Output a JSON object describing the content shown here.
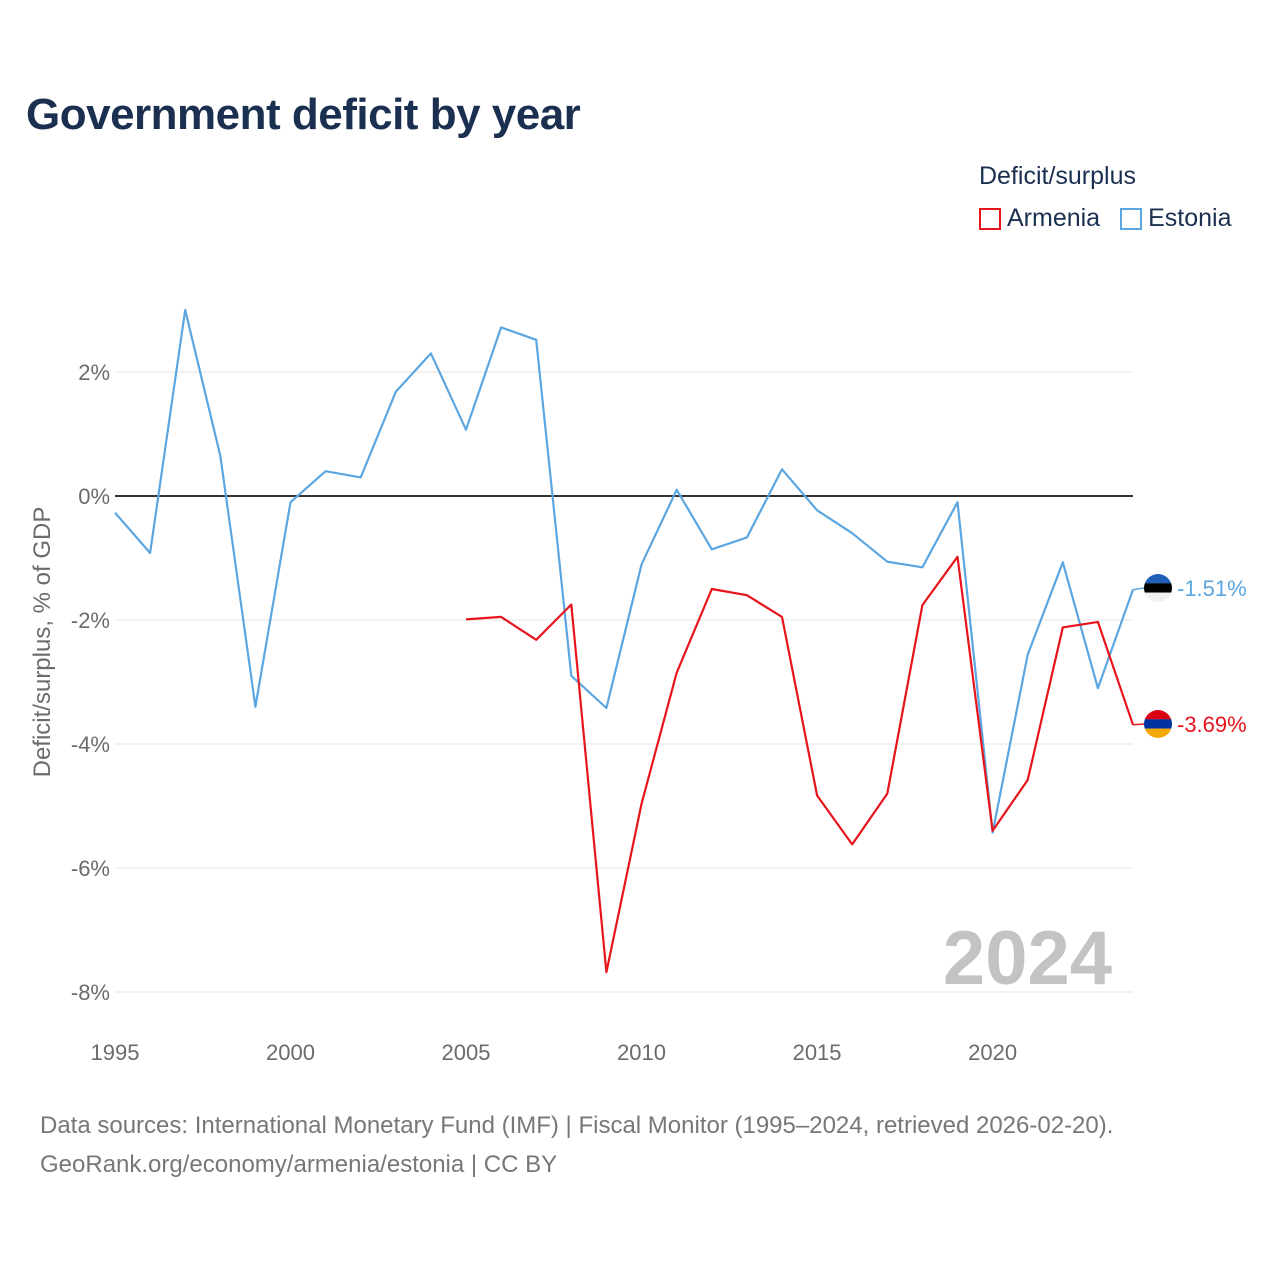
{
  "title": "Government deficit by year",
  "legend": {
    "title": "Deficit/surplus",
    "items": [
      {
        "name": "Armenia",
        "color": "#e8141b"
      },
      {
        "name": "Estonia",
        "color": "#5ba6e0"
      }
    ]
  },
  "year_watermark": "2024",
  "footer": {
    "line1": "Data sources: International Monetary Fund (IMF) | Fiscal Monitor (1995–2024, retrieved 2026-02-20).",
    "line2": "GeoRank.org/economy/armenia/estonia | CC BY"
  },
  "chart_data": {
    "type": "line",
    "title": "Government deficit by year",
    "xlabel": "",
    "ylabel": "Deficit/surplus, % of GDP",
    "xlim": [
      1995,
      2024
    ],
    "ylim": [
      -8.0,
      2.0
    ],
    "x_ticks": [
      1995,
      2000,
      2005,
      2010,
      2015,
      2020
    ],
    "y_ticks": [
      {
        "value": 2,
        "label": "2%"
      },
      {
        "value": 0,
        "label": "0%"
      },
      {
        "value": -2,
        "label": "-2%"
      },
      {
        "value": -4,
        "label": "-4%"
      },
      {
        "value": -6,
        "label": "-6%"
      },
      {
        "value": -8,
        "label": "-8%"
      }
    ],
    "grid": true,
    "legend_position": "top-right",
    "series": [
      {
        "name": "Estonia",
        "color": "#5ba6e0",
        "end_label": "-1.51%",
        "x": [
          1995,
          1996,
          1997,
          1998,
          1999,
          2000,
          2001,
          2002,
          2003,
          2004,
          2005,
          2006,
          2007,
          2008,
          2009,
          2010,
          2011,
          2012,
          2013,
          2014,
          2015,
          2016,
          2017,
          2018,
          2019,
          2020,
          2021,
          2022,
          2023,
          2024
        ],
        "values": [
          -0.27,
          -0.92,
          3.0,
          0.65,
          -3.4,
          -0.1,
          0.4,
          0.3,
          1.68,
          2.3,
          1.07,
          2.72,
          2.52,
          -2.9,
          -3.42,
          -1.1,
          0.1,
          -0.86,
          -0.67,
          0.43,
          -0.23,
          -0.6,
          -1.06,
          -1.15,
          -0.1,
          -5.43,
          -2.56,
          -1.07,
          -3.1,
          -1.51
        ]
      },
      {
        "name": "Armenia",
        "color": "#e8141b",
        "end_label": "-3.69%",
        "x": [
          2005,
          2006,
          2007,
          2008,
          2009,
          2010,
          2011,
          2012,
          2013,
          2014,
          2015,
          2016,
          2017,
          2018,
          2019,
          2020,
          2021,
          2022,
          2023,
          2024
        ],
        "values": [
          -1.99,
          -1.95,
          -2.32,
          -1.75,
          -7.68,
          -4.96,
          -2.85,
          -1.5,
          -1.6,
          -1.95,
          -4.83,
          -5.62,
          -4.8,
          -1.76,
          -0.98,
          -5.4,
          -4.58,
          -2.12,
          -2.03,
          -3.69
        ]
      }
    ]
  }
}
